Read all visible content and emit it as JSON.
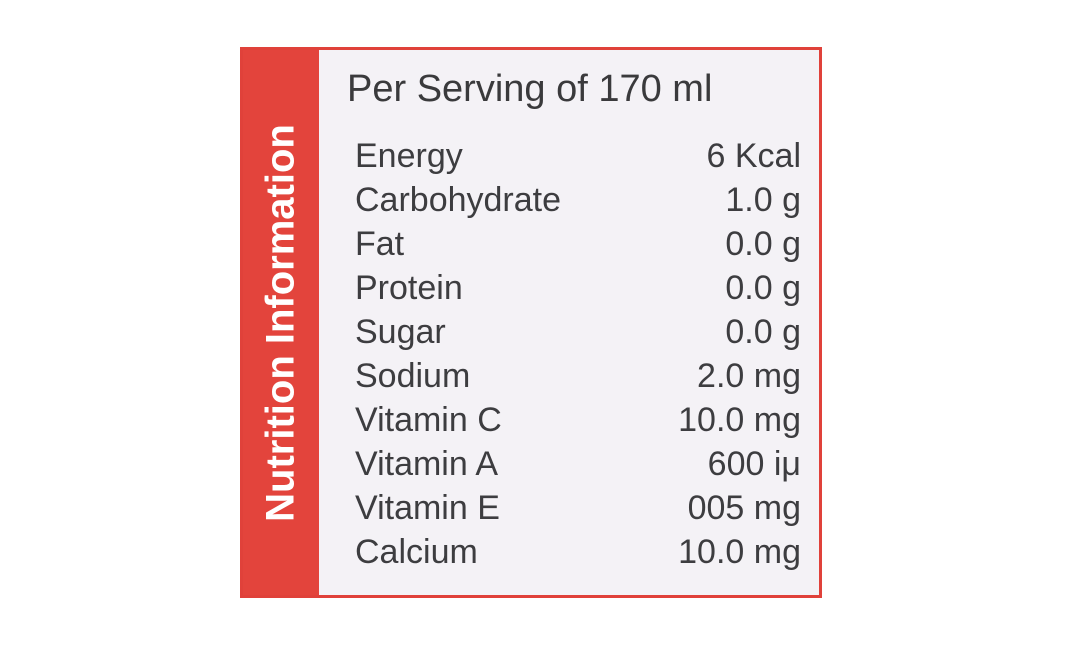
{
  "label": {
    "side_title": "Nutrition Information",
    "heading": "Per Serving of 170 ml",
    "rows": [
      [
        "Energy",
        "6 Kcal"
      ],
      [
        "Carbohydrate",
        "1.0 g"
      ],
      [
        "Fat",
        "0.0 g"
      ],
      [
        "Protein",
        "0.0 g"
      ],
      [
        "Sugar",
        "0.0 g"
      ],
      [
        "Sodium",
        "2.0 mg"
      ],
      [
        "Vitamin C",
        "10.0 mg"
      ],
      [
        "Vitamin A",
        "600 iμ"
      ],
      [
        "Vitamin E",
        "005 mg"
      ],
      [
        "Calcium",
        "10.0 mg"
      ]
    ]
  }
}
